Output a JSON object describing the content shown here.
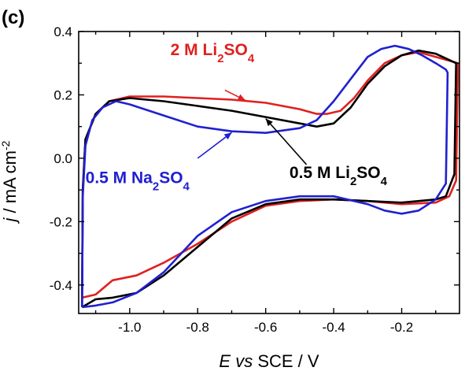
{
  "chart_data": {
    "type": "line",
    "panel_label": "(c)",
    "xlabel": {
      "italic": "E vs",
      "rest": " SCE / V"
    },
    "ylabel": {
      "italic": "j",
      "rest": " / mA cm",
      "sup": "-2"
    },
    "xlim": [
      -1.15,
      -0.03
    ],
    "ylim": [
      -0.49,
      0.4
    ],
    "xticks": [
      -1.0,
      -0.8,
      -0.6,
      -0.4,
      -0.2
    ],
    "xtick_labels": [
      "-1.0",
      "-0.8",
      "-0.6",
      "-0.4",
      "-0.2"
    ],
    "yticks": [
      -0.4,
      -0.2,
      0.0,
      0.2,
      0.4
    ],
    "ytick_labels": [
      "-0.4",
      "-0.2",
      "0.0",
      "0.2",
      "0.4"
    ],
    "series": [
      {
        "name_parts": {
          "pre": "2 M Li",
          "sub1": "2",
          "mid": "SO",
          "sub2": "4"
        },
        "color": "#e02020",
        "upper": [
          [
            -1.14,
            -0.44
          ],
          [
            -1.138,
            -0.1
          ],
          [
            -1.13,
            0.06
          ],
          [
            -1.1,
            0.14
          ],
          [
            -1.06,
            0.18
          ],
          [
            -1.0,
            0.195
          ],
          [
            -0.9,
            0.195
          ],
          [
            -0.8,
            0.19
          ],
          [
            -0.7,
            0.185
          ],
          [
            -0.6,
            0.175
          ],
          [
            -0.5,
            0.155
          ],
          [
            -0.45,
            0.14
          ],
          [
            -0.42,
            0.14
          ],
          [
            -0.38,
            0.15
          ],
          [
            -0.34,
            0.19
          ],
          [
            -0.3,
            0.245
          ],
          [
            -0.25,
            0.3
          ],
          [
            -0.2,
            0.325
          ],
          [
            -0.15,
            0.335
          ],
          [
            -0.1,
            0.32
          ],
          [
            -0.05,
            0.305
          ],
          [
            -0.035,
            0.3
          ]
        ],
        "lower": [
          [
            -0.035,
            0.255
          ],
          [
            -0.04,
            -0.07
          ],
          [
            -0.06,
            -0.12
          ],
          [
            -0.1,
            -0.14
          ],
          [
            -0.2,
            -0.145
          ],
          [
            -0.3,
            -0.135
          ],
          [
            -0.4,
            -0.13
          ],
          [
            -0.5,
            -0.135
          ],
          [
            -0.6,
            -0.15
          ],
          [
            -0.7,
            -0.2
          ],
          [
            -0.8,
            -0.27
          ],
          [
            -0.9,
            -0.33
          ],
          [
            -0.98,
            -0.37
          ],
          [
            -1.05,
            -0.385
          ],
          [
            -1.1,
            -0.43
          ],
          [
            -1.14,
            -0.44
          ]
        ]
      },
      {
        "name_parts": {
          "pre": "0.5 M Li",
          "sub1": "2",
          "mid": "SO",
          "sub2": "4"
        },
        "color": "#000000",
        "upper": [
          [
            -1.14,
            -0.47
          ],
          [
            -1.138,
            -0.1
          ],
          [
            -1.13,
            0.06
          ],
          [
            -1.1,
            0.14
          ],
          [
            -1.06,
            0.18
          ],
          [
            -1.0,
            0.19
          ],
          [
            -0.9,
            0.18
          ],
          [
            -0.8,
            0.165
          ],
          [
            -0.7,
            0.15
          ],
          [
            -0.6,
            0.13
          ],
          [
            -0.5,
            0.11
          ],
          [
            -0.45,
            0.1
          ],
          [
            -0.4,
            0.11
          ],
          [
            -0.35,
            0.16
          ],
          [
            -0.3,
            0.235
          ],
          [
            -0.25,
            0.29
          ],
          [
            -0.2,
            0.325
          ],
          [
            -0.15,
            0.34
          ],
          [
            -0.1,
            0.33
          ],
          [
            -0.06,
            0.31
          ],
          [
            -0.04,
            0.3
          ]
        ],
        "lower": [
          [
            -0.04,
            0.3
          ],
          [
            -0.045,
            -0.05
          ],
          [
            -0.07,
            -0.12
          ],
          [
            -0.1,
            -0.13
          ],
          [
            -0.2,
            -0.14
          ],
          [
            -0.3,
            -0.135
          ],
          [
            -0.4,
            -0.13
          ],
          [
            -0.5,
            -0.13
          ],
          [
            -0.6,
            -0.145
          ],
          [
            -0.7,
            -0.19
          ],
          [
            -0.8,
            -0.28
          ],
          [
            -0.9,
            -0.37
          ],
          [
            -0.98,
            -0.425
          ],
          [
            -1.05,
            -0.44
          ],
          [
            -1.1,
            -0.445
          ],
          [
            -1.14,
            -0.47
          ]
        ]
      },
      {
        "name_parts": {
          "pre": "0.5 M Na",
          "sub1": "2",
          "mid": "SO",
          "sub2": "4"
        },
        "color": "#2020d0",
        "upper": [
          [
            -1.14,
            -0.47
          ],
          [
            -1.138,
            -0.12
          ],
          [
            -1.13,
            0.04
          ],
          [
            -1.11,
            0.12
          ],
          [
            -1.08,
            0.16
          ],
          [
            -1.04,
            0.18
          ],
          [
            -1.0,
            0.17
          ],
          [
            -0.9,
            0.135
          ],
          [
            -0.8,
            0.1
          ],
          [
            -0.7,
            0.085
          ],
          [
            -0.6,
            0.08
          ],
          [
            -0.5,
            0.095
          ],
          [
            -0.45,
            0.12
          ],
          [
            -0.4,
            0.18
          ],
          [
            -0.35,
            0.25
          ],
          [
            -0.3,
            0.32
          ],
          [
            -0.26,
            0.345
          ],
          [
            -0.22,
            0.355
          ],
          [
            -0.18,
            0.345
          ],
          [
            -0.14,
            0.325
          ],
          [
            -0.1,
            0.3
          ],
          [
            -0.07,
            0.28
          ],
          [
            -0.065,
            0.27
          ]
        ],
        "lower": [
          [
            -0.065,
            0.265
          ],
          [
            -0.07,
            -0.08
          ],
          [
            -0.1,
            -0.13
          ],
          [
            -0.15,
            -0.165
          ],
          [
            -0.2,
            -0.175
          ],
          [
            -0.25,
            -0.165
          ],
          [
            -0.3,
            -0.145
          ],
          [
            -0.4,
            -0.12
          ],
          [
            -0.5,
            -0.12
          ],
          [
            -0.6,
            -0.135
          ],
          [
            -0.7,
            -0.17
          ],
          [
            -0.8,
            -0.245
          ],
          [
            -0.9,
            -0.36
          ],
          [
            -0.98,
            -0.425
          ],
          [
            -1.05,
            -0.455
          ],
          [
            -1.1,
            -0.465
          ],
          [
            -1.14,
            -0.47
          ]
        ]
      }
    ],
    "annotations": [
      {
        "series": 0,
        "text_x": -0.88,
        "text_y": 0.325,
        "arrow_from": [
          -0.72,
          0.215
        ],
        "arrow_to": [
          -0.66,
          0.183
        ]
      },
      {
        "series": 2,
        "text_x": -1.13,
        "text_y": -0.078,
        "arrow_from": [
          -0.8,
          0.0
        ],
        "arrow_to": [
          -0.7,
          0.081
        ]
      },
      {
        "series": 1,
        "text_x": -0.53,
        "text_y": -0.063,
        "arrow_from": [
          -0.48,
          -0.02
        ],
        "arrow_to": [
          -0.6,
          0.125
        ]
      }
    ]
  }
}
